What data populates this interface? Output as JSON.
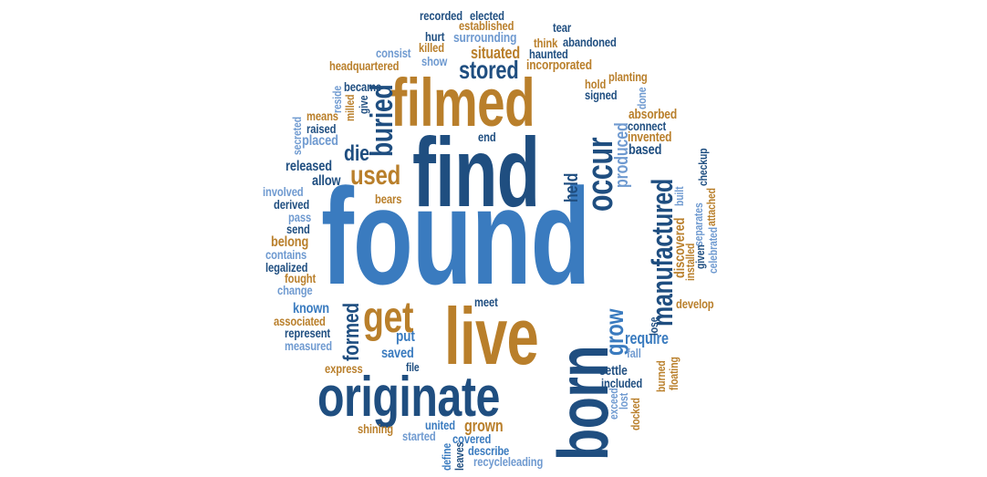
{
  "palette": {
    "medium_blue": "#3a7bbf",
    "navy": "#1f4e80",
    "ochre": "#b97f2b",
    "light_blue": "#6f9ad0"
  },
  "words": {
    "found": "found",
    "find": "find",
    "filmed": "filmed",
    "live": "live",
    "originate": "originate",
    "born": "born",
    "manufactured": "manufactured",
    "occur": "occur",
    "get": "get",
    "buried": "buried",
    "used": "used",
    "stored": "stored",
    "grow": "grow",
    "situated": "situated",
    "die": "die",
    "produced": "produced",
    "held": "held",
    "formed": "formed",
    "grown": "grown",
    "incorporated": "incorporated",
    "surrounding": "surrounding",
    "require": "require",
    "discovered": "discovered",
    "based": "based",
    "invented": "invented",
    "absorbed": "absorbed",
    "known": "known",
    "put": "put",
    "saved": "saved",
    "released": "released",
    "allow": "allow",
    "placed": "placed",
    "belong": "belong",
    "fought": "fought",
    "settle": "settle",
    "included": "included",
    "covered": "covered",
    "describe": "describe",
    "recycleleading": "recycleleading",
    "united": "united",
    "started": "started",
    "shining": "shining",
    "express": "express",
    "measured": "measured",
    "represent": "represent",
    "associated": "associated",
    "meet": "meet",
    "recorded": "recorded",
    "elected": "elected",
    "established": "established",
    "tear": "tear",
    "killed": "killed",
    "think": "think",
    "hurt": "hurt",
    "abandoned": "abandoned",
    "consist": "consist",
    "show": "show",
    "haunted": "haunted",
    "headquartered": "headquartered",
    "planting": "planting",
    "hold": "hold",
    "signed": "signed",
    "done": "done",
    "became": "became",
    "give": "give",
    "reside": "reside",
    "milled": "milled",
    "means": "means",
    "raised": "raised",
    "secreted": "secreted",
    "end": "end",
    "connect": "connect",
    "checkup": "checkup",
    "involved": "involved",
    "derived": "derived",
    "pass": "pass",
    "send": "send",
    "contains": "contains",
    "legalized": "legalized",
    "change": "change",
    "develop": "develop",
    "lose": "lose",
    "fall": "fall",
    "floating": "floating",
    "burned": "burned",
    "separates": "separates",
    "celebrated": "celebrated",
    "given": "given",
    "installed": "installed",
    "attached": "attached",
    "built": "built",
    "bears": "bears",
    "exceed": "exceed",
    "lost": "lost",
    "docked": "docked",
    "define": "define",
    "leaves": "leaves",
    "file": "file"
  }
}
